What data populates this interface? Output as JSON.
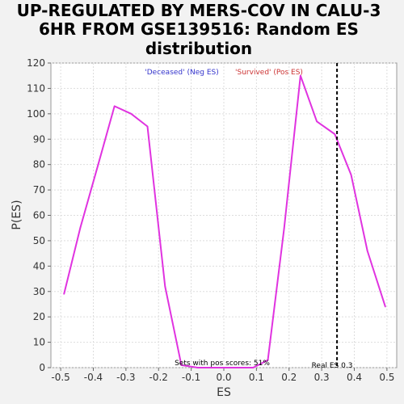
{
  "chart_data": {
    "type": "line",
    "title_lines": [
      "UP-REGULATED BY MERS-COV IN CALU-3",
      "6HR FROM GSE139516: Random ES",
      "distribution"
    ],
    "xlabel": "ES",
    "ylabel": "P(ES)",
    "xlim": [
      -0.53,
      0.53
    ],
    "ylim": [
      0,
      120
    ],
    "xticks": [
      "-0.5",
      "-0.4",
      "-0.3",
      "-0.2",
      "-0.1",
      "0.0",
      "0.1",
      "0.2",
      "0.3",
      "0.4",
      "0.5"
    ],
    "yticks": [
      "0",
      "10",
      "20",
      "30",
      "40",
      "50",
      "60",
      "70",
      "80",
      "90",
      "100",
      "110",
      "120"
    ],
    "grid": true,
    "series": [
      {
        "color": "#e033e0",
        "x": [
          -0.49,
          -0.44,
          -0.385,
          -0.335,
          -0.284,
          -0.234,
          -0.18,
          -0.13,
          -0.08,
          -0.02,
          0.04,
          0.09,
          0.135,
          0.185,
          0.235,
          0.285,
          0.34,
          0.39,
          0.44,
          0.495
        ],
        "y": [
          29,
          55,
          80,
          103,
          100,
          95,
          32,
          1,
          0,
          0,
          0,
          0,
          3,
          55,
          115,
          97,
          92,
          76,
          46,
          24
        ]
      }
    ],
    "legend": {
      "placement": "top-center",
      "neg_label": "'Deceased' (Neg ES)",
      "neg_color": "#3333cc",
      "pos_label": "'Survived' (Pos ES)",
      "pos_color": "#cc3333"
    },
    "real_es": {
      "value": 0.347,
      "label": "Real ES 0.3"
    },
    "annotation": "Sets with pos scores: 51%"
  }
}
